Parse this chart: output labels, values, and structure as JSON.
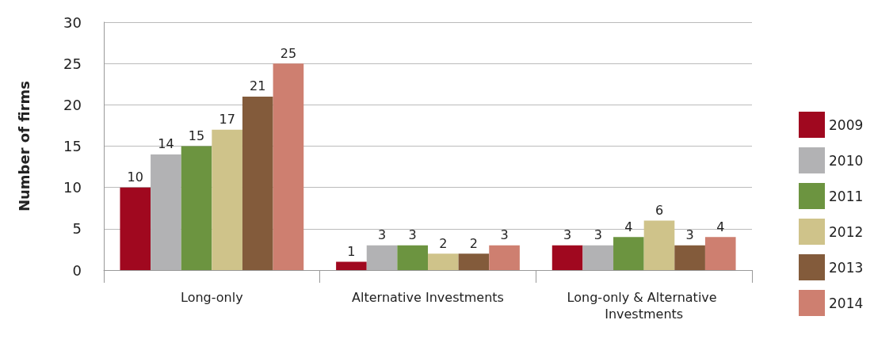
{
  "chart_data": {
    "type": "bar",
    "ylabel": "Number of firms",
    "categories": [
      "Long-only",
      "Alternative Investments",
      "Long-only & Alternative Investments"
    ],
    "series": [
      {
        "name": "2009",
        "color": "#a0081f",
        "values": [
          10,
          1,
          3
        ]
      },
      {
        "name": "2010",
        "color": "#b2b2b4",
        "values": [
          14,
          3,
          3
        ]
      },
      {
        "name": "2011",
        "color": "#6c9440",
        "values": [
          15,
          3,
          4
        ]
      },
      {
        "name": "2012",
        "color": "#cfc38a",
        "values": [
          17,
          2,
          6
        ]
      },
      {
        "name": "2013",
        "color": "#835b3b",
        "values": [
          21,
          2,
          3
        ]
      },
      {
        "name": "2014",
        "color": "#ce7f70",
        "values": [
          25,
          3,
          4
        ]
      }
    ],
    "ylim": [
      0,
      30
    ],
    "yticks": [
      0,
      5,
      10,
      15,
      20,
      25,
      30
    ],
    "grid": "y",
    "legend": "right",
    "data_labels": true
  }
}
